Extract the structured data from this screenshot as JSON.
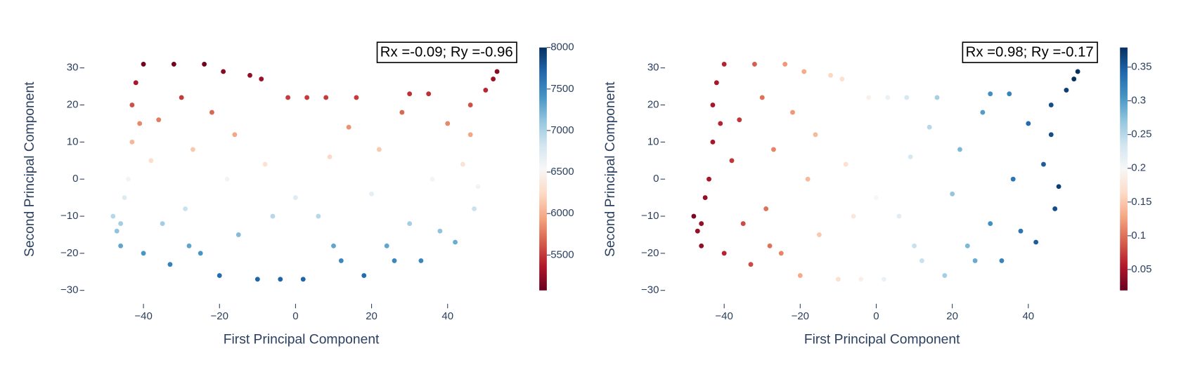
{
  "chart_data": [
    {
      "type": "scatter",
      "x_label": "First Principal Component",
      "y_label": "Second Principal Component",
      "annotation": "Rx =-0.09; Ry =-0.96",
      "colorscale": [
        "#67001f",
        "#b2182b",
        "#d6604d",
        "#f4a582",
        "#fddbc7",
        "#f7f7f7",
        "#d1e5f0",
        "#92c5de",
        "#4393c3",
        "#2166ac",
        "#053061"
      ],
      "xlim": [
        -50,
        55
      ],
      "ylim": [
        -32,
        36
      ],
      "xticks": [
        {
          "value": -40,
          "label": "−40"
        },
        {
          "value": -20,
          "label": "−20"
        },
        0,
        20,
        40
      ],
      "yticks": [
        {
          "value": -30,
          "label": "−30"
        },
        {
          "value": -20,
          "label": "−20"
        },
        {
          "value": -10,
          "label": "−10"
        },
        0,
        10,
        20,
        30
      ],
      "clim": [
        5074,
        8000
      ],
      "cticks": [
        5500,
        6000,
        6500,
        7000,
        7500,
        8000
      ],
      "x": [
        -48,
        -47,
        -46,
        -45,
        -44,
        -43,
        -43,
        -42,
        -40,
        -40,
        -38,
        -36,
        -35,
        -33,
        -32,
        -30,
        -29,
        -27,
        -25,
        -24,
        -22,
        -20,
        -19,
        -18,
        -16,
        -15,
        -12,
        -10,
        -9,
        -8,
        -6,
        -4,
        -2,
        0,
        2,
        3,
        6,
        8,
        9,
        12,
        14,
        16,
        18,
        20,
        22,
        24,
        28,
        30,
        30,
        33,
        35,
        36,
        38,
        40,
        42,
        44,
        46,
        47,
        48,
        50,
        52,
        53,
        46,
        -46,
        -41,
        10,
        -28,
        26
      ],
      "y": [
        -10,
        -14,
        -18,
        -5,
        0,
        10,
        20,
        26,
        31,
        -20,
        5,
        16,
        -12,
        -23,
        31,
        22,
        -8,
        8,
        -20,
        31,
        18,
        -26,
        29,
        0,
        12,
        -15,
        28,
        -27,
        27,
        4,
        -10,
        -27,
        22,
        -5,
        -27,
        22,
        -10,
        22,
        6,
        -22,
        14,
        22,
        -26,
        -4,
        8,
        -18,
        18,
        -12,
        23,
        -22,
        23,
        0,
        -14,
        15,
        -17,
        4,
        20,
        -8,
        -2,
        24,
        27,
        29,
        12,
        -12,
        15,
        -18,
        -18,
        -22
      ],
      "values": [
        6950,
        7130,
        7310,
        6725,
        6500,
        6050,
        5600,
        5330,
        5105,
        7400,
        6275,
        5780,
        7040,
        7535,
        5105,
        5510,
        6860,
        6140,
        7400,
        5105,
        5690,
        7670,
        5195,
        6500,
        5960,
        7175,
        5240,
        7715,
        5285,
        6320,
        6950,
        7715,
        5510,
        6725,
        7715,
        5510,
        6950,
        5510,
        6230,
        7490,
        5870,
        5510,
        7670,
        6680,
        6140,
        7310,
        5690,
        7040,
        5465,
        7490,
        5465,
        6500,
        7130,
        5825,
        7265,
        6320,
        5600,
        6860,
        6590,
        5420,
        5285,
        5195,
        5960,
        7040,
        5825,
        7310,
        7310,
        7490
      ]
    },
    {
      "type": "scatter",
      "x_label": "First Principal Component",
      "y_label": "Second Principal Component",
      "annotation": "Rx =0.98; Ry =-0.17",
      "colorscale": [
        "#67001f",
        "#b2182b",
        "#d6604d",
        "#f4a582",
        "#fddbc7",
        "#f7f7f7",
        "#d1e5f0",
        "#92c5de",
        "#4393c3",
        "#2166ac",
        "#053061"
      ],
      "xlim": [
        -50,
        55
      ],
      "ylim": [
        -32,
        36
      ],
      "xticks": [
        {
          "value": -40,
          "label": "−40"
        },
        {
          "value": -20,
          "label": "−20"
        },
        0,
        20,
        40
      ],
      "yticks": [
        {
          "value": -30,
          "label": "−30"
        },
        {
          "value": -20,
          "label": "−20"
        },
        {
          "value": -10,
          "label": "−10"
        },
        0,
        10,
        20,
        30
      ],
      "clim": [
        0.019,
        0.379
      ],
      "cticks": [
        0.05,
        0.1,
        0.15,
        0.2,
        0.25,
        0.3,
        0.35
      ],
      "x": [
        -48,
        -47,
        -46,
        -45,
        -44,
        -43,
        -43,
        -42,
        -40,
        -40,
        -38,
        -36,
        -35,
        -33,
        -32,
        -30,
        -29,
        -27,
        -25,
        -24,
        -22,
        -20,
        -19,
        -18,
        -16,
        -15,
        -12,
        -10,
        -9,
        -8,
        -6,
        -4,
        -2,
        0,
        2,
        3,
        6,
        8,
        9,
        12,
        14,
        16,
        18,
        20,
        22,
        24,
        28,
        30,
        30,
        33,
        35,
        36,
        38,
        40,
        42,
        44,
        46,
        47,
        48,
        50,
        52,
        53,
        46,
        -46,
        -41,
        10,
        -28,
        26
      ],
      "y": [
        -10,
        -14,
        -18,
        -5,
        0,
        10,
        20,
        26,
        31,
        -20,
        5,
        16,
        -12,
        -23,
        31,
        22,
        -8,
        8,
        -20,
        31,
        18,
        -26,
        29,
        0,
        12,
        -15,
        28,
        -27,
        27,
        4,
        -10,
        -27,
        22,
        -5,
        -27,
        22,
        -10,
        22,
        6,
        -22,
        14,
        22,
        -26,
        -4,
        8,
        -18,
        18,
        -12,
        23,
        -22,
        23,
        0,
        -14,
        15,
        -17,
        4,
        20,
        -8,
        -2,
        24,
        27,
        29,
        12,
        -12,
        15,
        -18,
        -18,
        -22
      ],
      "values": [
        0.03,
        0.04,
        0.04,
        0.04,
        0.05,
        0.05,
        0.05,
        0.05,
        0.06,
        0.06,
        0.07,
        0.07,
        0.08,
        0.08,
        0.09,
        0.1,
        0.1,
        0.11,
        0.11,
        0.12,
        0.12,
        0.13,
        0.13,
        0.14,
        0.14,
        0.15,
        0.16,
        0.17,
        0.17,
        0.17,
        0.18,
        0.19,
        0.19,
        0.2,
        0.21,
        0.21,
        0.22,
        0.23,
        0.23,
        0.24,
        0.25,
        0.26,
        0.26,
        0.27,
        0.28,
        0.28,
        0.3,
        0.31,
        0.31,
        0.32,
        0.32,
        0.33,
        0.33,
        0.34,
        0.35,
        0.35,
        0.36,
        0.36,
        0.37,
        0.37,
        0.38,
        0.38,
        0.36,
        0.04,
        0.06,
        0.24,
        0.1,
        0.29
      ]
    }
  ]
}
